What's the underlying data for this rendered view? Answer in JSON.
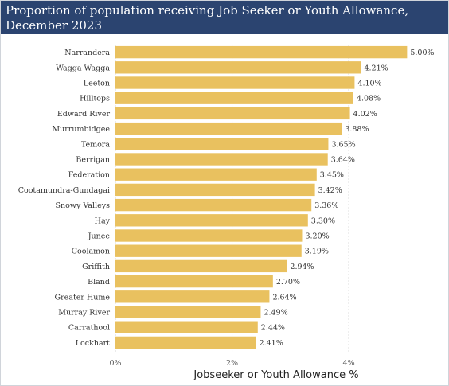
{
  "chart_data": {
    "type": "bar",
    "orientation": "horizontal",
    "title": "Proportion of population receiving Job Seeker or Youth Allowance, December 2023",
    "xlabel": "Jobseeker or Youth Allowance %",
    "ylabel": "",
    "categories": [
      "Narrandera",
      "Wagga Wagga",
      "Leeton",
      "Hilltops",
      "Edward River",
      "Murrumbidgee",
      "Temora",
      "Berrigan",
      "Federation",
      "Cootamundra-Gundagai",
      "Snowy Valleys",
      "Hay",
      "Junee",
      "Coolamon",
      "Griffith",
      "Bland",
      "Greater Hume",
      "Murray River",
      "Carrathool",
      "Lockhart"
    ],
    "values": [
      5.0,
      4.21,
      4.1,
      4.08,
      4.02,
      3.88,
      3.65,
      3.64,
      3.45,
      3.42,
      3.36,
      3.3,
      3.2,
      3.19,
      2.94,
      2.7,
      2.64,
      2.49,
      2.44,
      2.41
    ],
    "value_labels": [
      "5.00%",
      "4.21%",
      "4.10%",
      "4.08%",
      "4.02%",
      "3.88%",
      "3.65%",
      "3.64%",
      "3.45%",
      "3.42%",
      "3.36%",
      "3.30%",
      "3.20%",
      "3.19%",
      "2.94%",
      "2.70%",
      "2.64%",
      "2.49%",
      "2.44%",
      "2.41%"
    ],
    "xticks": [
      0,
      2,
      4
    ],
    "xtick_labels": [
      "0%",
      "2%",
      "4%"
    ],
    "xlim": [
      0,
      5.5
    ],
    "grid": "vertical dashed",
    "bar_color": "#e9c15f",
    "title_bar_color": "#2b4470"
  }
}
